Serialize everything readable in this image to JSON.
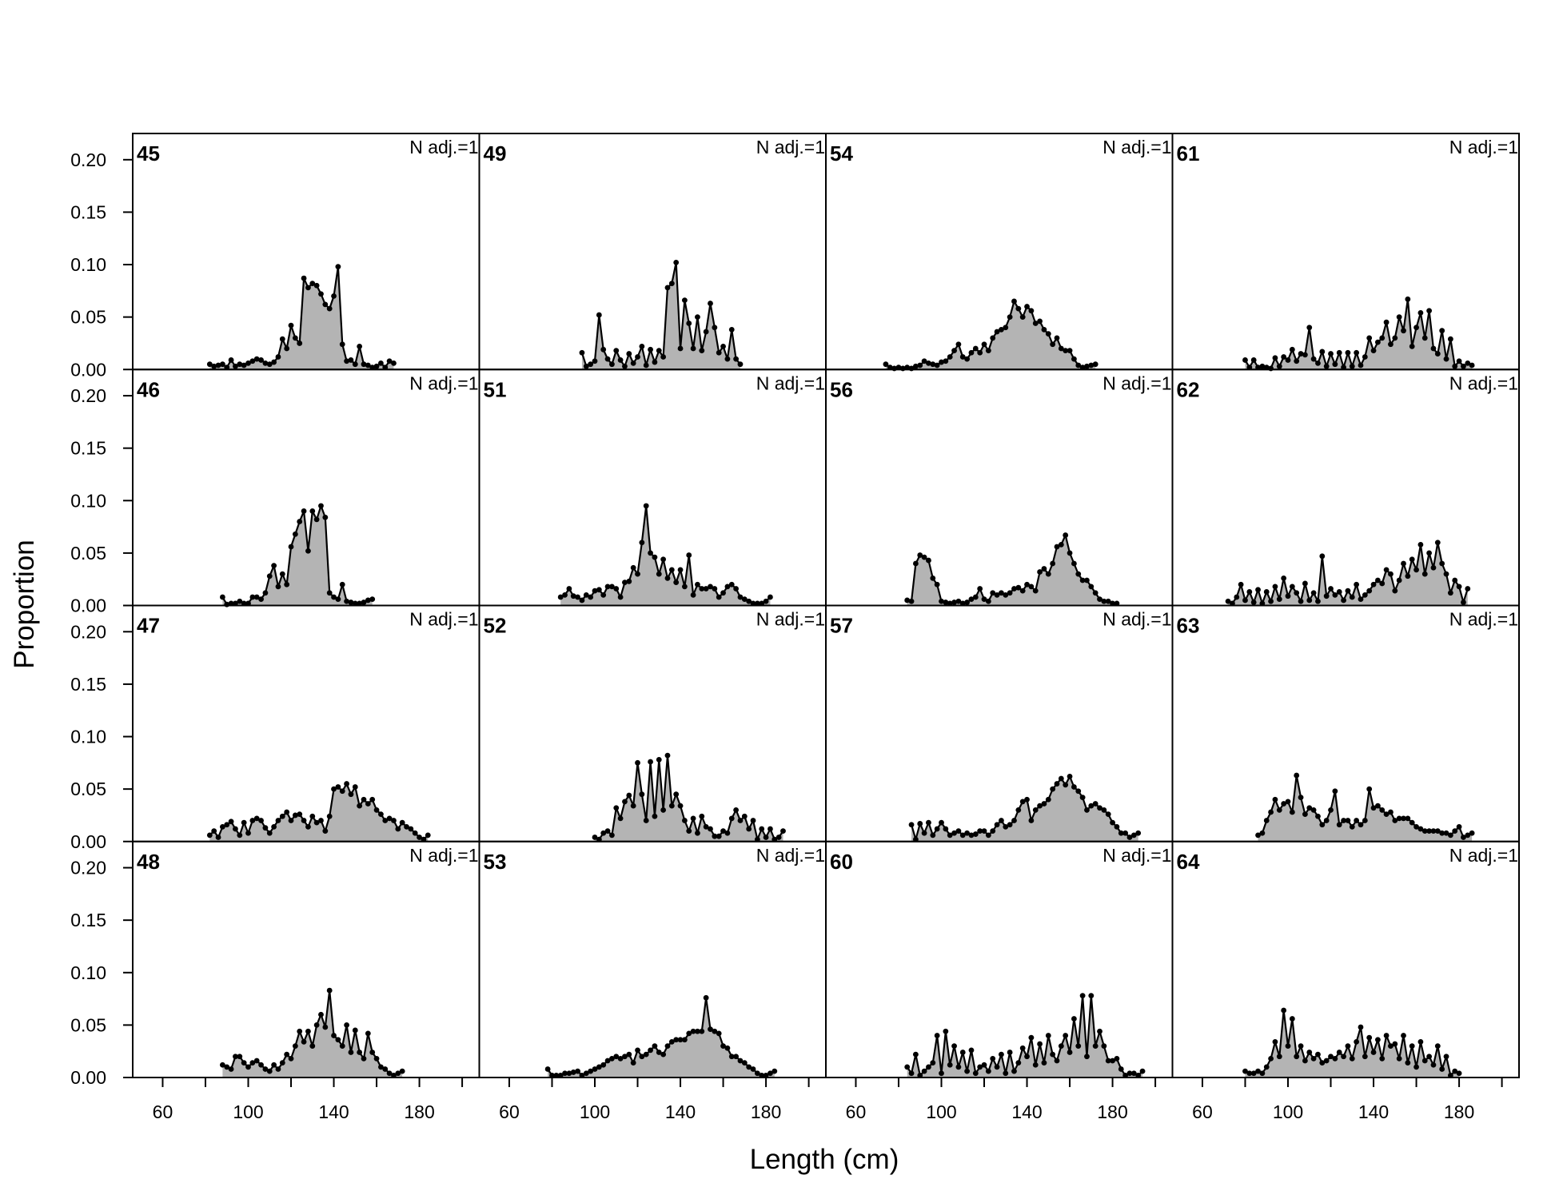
{
  "chart_data": {
    "type": "area",
    "layout": "4x4 panel grid, shared axes",
    "xlabel": "Length (cm)",
    "ylabel": "Proportion",
    "xlim": [
      46,
      208
    ],
    "ylim": [
      0,
      0.225
    ],
    "xticks": [
      60,
      100,
      140,
      180
    ],
    "xticks_minor": [
      80,
      120,
      160,
      200
    ],
    "yticks": [
      0.0,
      0.05,
      0.1,
      0.15,
      0.2
    ],
    "ytick_labels": [
      "0.00",
      "0.05",
      "0.10",
      "0.15",
      "0.20"
    ],
    "fill_color": "#b4b4b4",
    "line_color": "#000000",
    "bin_width_cm": 2,
    "annotation": "N adj.=1",
    "panels": [
      {
        "label": "45",
        "row": 0,
        "col": 0,
        "x_start": 82,
        "values": [
          0.005,
          0.003,
          0.004,
          0.005,
          0.002,
          0.009,
          0.003,
          0.005,
          0.004,
          0.006,
          0.008,
          0.01,
          0.009,
          0.006,
          0.005,
          0.007,
          0.012,
          0.029,
          0.02,
          0.042,
          0.03,
          0.025,
          0.087,
          0.078,
          0.082,
          0.08,
          0.072,
          0.062,
          0.058,
          0.07,
          0.098,
          0.024,
          0.008,
          0.009,
          0.005,
          0.022,
          0.005,
          0.004,
          0.002,
          0.003,
          0.006,
          0.002,
          0.008,
          0.006
        ]
      },
      {
        "label": "49",
        "row": 0,
        "col": 1,
        "x_start": 94,
        "values": [
          0.016,
          0.003,
          0.005,
          0.008,
          0.052,
          0.019,
          0.01,
          0.005,
          0.018,
          0.009,
          0.003,
          0.015,
          0.006,
          0.012,
          0.022,
          0.004,
          0.019,
          0.007,
          0.018,
          0.012,
          0.078,
          0.082,
          0.102,
          0.02,
          0.066,
          0.044,
          0.02,
          0.05,
          0.018,
          0.036,
          0.063,
          0.04,
          0.016,
          0.022,
          0.01,
          0.038,
          0.01,
          0.005
        ]
      },
      {
        "label": "54",
        "row": 0,
        "col": 2,
        "x_start": 74,
        "values": [
          0.005,
          0.002,
          0.001,
          0.002,
          0.001,
          0.002,
          0.001,
          0.003,
          0.004,
          0.008,
          0.006,
          0.005,
          0.004,
          0.007,
          0.008,
          0.012,
          0.018,
          0.024,
          0.012,
          0.01,
          0.016,
          0.02,
          0.016,
          0.024,
          0.018,
          0.03,
          0.036,
          0.038,
          0.04,
          0.05,
          0.065,
          0.058,
          0.05,
          0.06,
          0.056,
          0.044,
          0.046,
          0.038,
          0.034,
          0.024,
          0.03,
          0.02,
          0.018,
          0.018,
          0.01,
          0.004,
          0.002,
          0.003,
          0.004,
          0.005
        ]
      },
      {
        "label": "61",
        "row": 0,
        "col": 3,
        "x_start": 80,
        "values": [
          0.009,
          0.002,
          0.009,
          0.002,
          0.003,
          0.002,
          0.001,
          0.011,
          0.003,
          0.012,
          0.009,
          0.019,
          0.008,
          0.015,
          0.014,
          0.04,
          0.01,
          0.006,
          0.017,
          0.003,
          0.015,
          0.005,
          0.016,
          0.002,
          0.016,
          0.003,
          0.016,
          0.004,
          0.012,
          0.03,
          0.018,
          0.026,
          0.03,
          0.045,
          0.024,
          0.03,
          0.05,
          0.037,
          0.067,
          0.022,
          0.04,
          0.054,
          0.03,
          0.056,
          0.02,
          0.015,
          0.037,
          0.01,
          0.029,
          0.003,
          0.008,
          0.003,
          0.006,
          0.004
        ]
      },
      {
        "label": "46",
        "row": 1,
        "col": 0,
        "x_start": 88,
        "values": [
          0.008,
          0.001,
          0.002,
          0.002,
          0.004,
          0.002,
          0.002,
          0.008,
          0.008,
          0.006,
          0.012,
          0.028,
          0.038,
          0.018,
          0.03,
          0.02,
          0.056,
          0.068,
          0.08,
          0.09,
          0.052,
          0.09,
          0.082,
          0.095,
          0.084,
          0.012,
          0.008,
          0.006,
          0.02,
          0.004,
          0.003,
          0.002,
          0.002,
          0.003,
          0.005,
          0.006
        ]
      },
      {
        "label": "51",
        "row": 1,
        "col": 1,
        "x_start": 84,
        "values": [
          0.008,
          0.01,
          0.016,
          0.009,
          0.008,
          0.005,
          0.01,
          0.008,
          0.014,
          0.015,
          0.01,
          0.018,
          0.018,
          0.016,
          0.008,
          0.022,
          0.023,
          0.036,
          0.03,
          0.06,
          0.095,
          0.05,
          0.046,
          0.03,
          0.044,
          0.026,
          0.034,
          0.022,
          0.034,
          0.018,
          0.048,
          0.01,
          0.02,
          0.016,
          0.016,
          0.018,
          0.016,
          0.008,
          0.012,
          0.018,
          0.02,
          0.016,
          0.008,
          0.006,
          0.004,
          0.002,
          0.002,
          0.002,
          0.004,
          0.008
        ]
      },
      {
        "label": "56",
        "row": 1,
        "col": 2,
        "x_start": 84,
        "values": [
          0.005,
          0.004,
          0.04,
          0.048,
          0.046,
          0.043,
          0.026,
          0.02,
          0.004,
          0.003,
          0.002,
          0.003,
          0.004,
          0.002,
          0.003,
          0.006,
          0.008,
          0.016,
          0.006,
          0.004,
          0.012,
          0.01,
          0.012,
          0.01,
          0.012,
          0.016,
          0.017,
          0.014,
          0.02,
          0.018,
          0.014,
          0.032,
          0.035,
          0.03,
          0.04,
          0.056,
          0.058,
          0.067,
          0.05,
          0.04,
          0.03,
          0.024,
          0.024,
          0.018,
          0.012,
          0.006,
          0.004,
          0.004,
          0.002,
          0.002
        ]
      },
      {
        "label": "62",
        "row": 1,
        "col": 3,
        "x_start": 72,
        "values": [
          0.004,
          0.002,
          0.008,
          0.02,
          0.005,
          0.013,
          0.003,
          0.015,
          0.002,
          0.013,
          0.004,
          0.018,
          0.006,
          0.026,
          0.009,
          0.018,
          0.012,
          0.004,
          0.021,
          0.005,
          0.012,
          0.004,
          0.047,
          0.009,
          0.016,
          0.01,
          0.013,
          0.005,
          0.014,
          0.008,
          0.02,
          0.006,
          0.01,
          0.014,
          0.02,
          0.024,
          0.021,
          0.034,
          0.03,
          0.014,
          0.024,
          0.04,
          0.028,
          0.044,
          0.034,
          0.058,
          0.03,
          0.05,
          0.036,
          0.06,
          0.04,
          0.03,
          0.012,
          0.024,
          0.018,
          0.003,
          0.016
        ]
      },
      {
        "label": "47",
        "row": 2,
        "col": 0,
        "x_start": 82,
        "values": [
          0.006,
          0.01,
          0.004,
          0.014,
          0.016,
          0.019,
          0.012,
          0.006,
          0.018,
          0.008,
          0.02,
          0.022,
          0.02,
          0.013,
          0.008,
          0.014,
          0.02,
          0.024,
          0.028,
          0.02,
          0.025,
          0.026,
          0.02,
          0.014,
          0.024,
          0.018,
          0.02,
          0.01,
          0.024,
          0.05,
          0.052,
          0.048,
          0.055,
          0.045,
          0.052,
          0.034,
          0.04,
          0.036,
          0.04,
          0.03,
          0.026,
          0.02,
          0.022,
          0.02,
          0.012,
          0.018,
          0.014,
          0.012,
          0.008,
          0.004,
          0.002,
          0.006
        ]
      },
      {
        "label": "52",
        "row": 2,
        "col": 1,
        "x_start": 100,
        "values": [
          0.004,
          0.002,
          0.008,
          0.01,
          0.006,
          0.032,
          0.022,
          0.038,
          0.044,
          0.034,
          0.075,
          0.045,
          0.02,
          0.076,
          0.024,
          0.078,
          0.03,
          0.082,
          0.034,
          0.045,
          0.034,
          0.02,
          0.01,
          0.022,
          0.008,
          0.024,
          0.014,
          0.012,
          0.005,
          0.005,
          0.01,
          0.008,
          0.022,
          0.03,
          0.02,
          0.024,
          0.012,
          0.02,
          0.002,
          0.012,
          0.004,
          0.012,
          0.002,
          0.004,
          0.01
        ]
      },
      {
        "label": "57",
        "row": 2,
        "col": 2,
        "x_start": 86,
        "values": [
          0.016,
          0.002,
          0.017,
          0.008,
          0.018,
          0.006,
          0.012,
          0.018,
          0.012,
          0.006,
          0.008,
          0.01,
          0.006,
          0.008,
          0.006,
          0.007,
          0.01,
          0.01,
          0.006,
          0.01,
          0.016,
          0.02,
          0.014,
          0.016,
          0.02,
          0.03,
          0.038,
          0.04,
          0.02,
          0.03,
          0.034,
          0.036,
          0.04,
          0.05,
          0.055,
          0.06,
          0.054,
          0.062,
          0.052,
          0.048,
          0.042,
          0.03,
          0.034,
          0.036,
          0.032,
          0.03,
          0.026,
          0.018,
          0.014,
          0.008,
          0.008,
          0.004,
          0.006,
          0.008
        ]
      },
      {
        "label": "63",
        "row": 2,
        "col": 3,
        "x_start": 86,
        "values": [
          0.006,
          0.008,
          0.02,
          0.028,
          0.04,
          0.03,
          0.036,
          0.038,
          0.028,
          0.063,
          0.042,
          0.026,
          0.032,
          0.03,
          0.024,
          0.016,
          0.02,
          0.03,
          0.048,
          0.016,
          0.02,
          0.02,
          0.014,
          0.02,
          0.016,
          0.02,
          0.05,
          0.032,
          0.034,
          0.03,
          0.026,
          0.028,
          0.02,
          0.022,
          0.022,
          0.022,
          0.018,
          0.014,
          0.012,
          0.01,
          0.01,
          0.01,
          0.01,
          0.008,
          0.008,
          0.006,
          0.01,
          0.014,
          0.004,
          0.006,
          0.008
        ]
      },
      {
        "label": "48",
        "row": 3,
        "col": 0,
        "x_start": 88,
        "values": [
          0.012,
          0.01,
          0.008,
          0.02,
          0.02,
          0.014,
          0.01,
          0.014,
          0.016,
          0.012,
          0.008,
          0.006,
          0.012,
          0.008,
          0.014,
          0.022,
          0.018,
          0.03,
          0.044,
          0.034,
          0.044,
          0.03,
          0.05,
          0.06,
          0.048,
          0.083,
          0.04,
          0.036,
          0.03,
          0.05,
          0.024,
          0.045,
          0.024,
          0.018,
          0.042,
          0.024,
          0.018,
          0.01,
          0.008,
          0.004,
          0.002,
          0.004,
          0.006
        ]
      },
      {
        "label": "53",
        "row": 3,
        "col": 1,
        "x_start": 78,
        "values": [
          0.008,
          0.002,
          0.002,
          0.002,
          0.004,
          0.004,
          0.005,
          0.006,
          0.002,
          0.004,
          0.006,
          0.008,
          0.01,
          0.012,
          0.016,
          0.018,
          0.02,
          0.018,
          0.02,
          0.022,
          0.014,
          0.026,
          0.02,
          0.022,
          0.026,
          0.03,
          0.024,
          0.022,
          0.03,
          0.034,
          0.036,
          0.036,
          0.036,
          0.042,
          0.044,
          0.044,
          0.044,
          0.076,
          0.046,
          0.044,
          0.042,
          0.03,
          0.028,
          0.02,
          0.02,
          0.016,
          0.014,
          0.01,
          0.008,
          0.004,
          0.002,
          0.002,
          0.004,
          0.006
        ]
      },
      {
        "label": "60",
        "row": 3,
        "col": 2,
        "x_start": 84,
        "values": [
          0.01,
          0.004,
          0.022,
          0.002,
          0.006,
          0.01,
          0.014,
          0.04,
          0.004,
          0.044,
          0.012,
          0.03,
          0.01,
          0.024,
          0.006,
          0.026,
          0.004,
          0.01,
          0.012,
          0.006,
          0.018,
          0.01,
          0.022,
          0.004,
          0.024,
          0.006,
          0.014,
          0.028,
          0.02,
          0.038,
          0.012,
          0.032,
          0.014,
          0.04,
          0.022,
          0.016,
          0.03,
          0.04,
          0.024,
          0.056,
          0.03,
          0.078,
          0.02,
          0.078,
          0.03,
          0.044,
          0.03,
          0.016,
          0.016,
          0.018,
          0.008,
          0.002,
          0.004,
          0.004,
          0.002,
          0.006
        ]
      },
      {
        "label": "64",
        "row": 3,
        "col": 3,
        "x_start": 80,
        "values": [
          0.006,
          0.004,
          0.004,
          0.006,
          0.004,
          0.01,
          0.018,
          0.034,
          0.02,
          0.064,
          0.03,
          0.056,
          0.02,
          0.03,
          0.016,
          0.024,
          0.018,
          0.022,
          0.014,
          0.016,
          0.02,
          0.018,
          0.024,
          0.02,
          0.03,
          0.018,
          0.034,
          0.048,
          0.02,
          0.038,
          0.024,
          0.036,
          0.018,
          0.04,
          0.03,
          0.032,
          0.018,
          0.04,
          0.014,
          0.03,
          0.01,
          0.034,
          0.016,
          0.02,
          0.012,
          0.03,
          0.008,
          0.02,
          0.002,
          0.006,
          0.004
        ]
      }
    ]
  }
}
